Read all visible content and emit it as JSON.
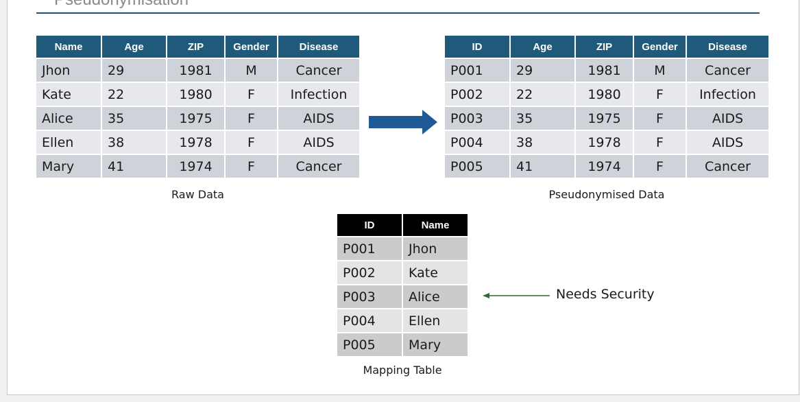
{
  "slide": {
    "title": "Pseudonymisation"
  },
  "raw_table": {
    "caption": "Raw Data",
    "headers": [
      "Name",
      "Age",
      "ZIP",
      "Gender",
      "Disease"
    ],
    "rows": [
      [
        "Jhon",
        "29",
        "1981",
        "M",
        "Cancer"
      ],
      [
        "Kate",
        "22",
        "1980",
        "F",
        "Infection"
      ],
      [
        "Alice",
        "35",
        "1975",
        "F",
        "AIDS"
      ],
      [
        "Ellen",
        "38",
        "1978",
        "F",
        "AIDS"
      ],
      [
        "Mary",
        "41",
        "1974",
        "F",
        "Cancer"
      ]
    ]
  },
  "pseudo_table": {
    "caption": "Pseudonymised Data",
    "headers": [
      "ID",
      "Age",
      "ZIP",
      "Gender",
      "Disease"
    ],
    "rows": [
      [
        "P001",
        "29",
        "1981",
        "M",
        "Cancer"
      ],
      [
        "P002",
        "22",
        "1980",
        "F",
        "Infection"
      ],
      [
        "P003",
        "35",
        "1975",
        "F",
        "AIDS"
      ],
      [
        "P004",
        "38",
        "1978",
        "F",
        "AIDS"
      ],
      [
        "P005",
        "41",
        "1974",
        "F",
        "Cancer"
      ]
    ]
  },
  "mapping_table": {
    "caption": "Mapping Table",
    "headers": [
      "ID",
      "Name"
    ],
    "rows": [
      [
        "P001",
        "Jhon"
      ],
      [
        "P002",
        "Kate"
      ],
      [
        "P003",
        "Alice"
      ],
      [
        "P004",
        "Ellen"
      ],
      [
        "P005",
        "Mary"
      ]
    ]
  },
  "annotation": {
    "label": "Needs Security"
  },
  "colors": {
    "header_blue": "#1f5a7a",
    "header_black": "#000000",
    "arrow_blue": "#1f5a96",
    "arrow_green": "#2e6b2e",
    "title_rule": "#1f4e79"
  }
}
